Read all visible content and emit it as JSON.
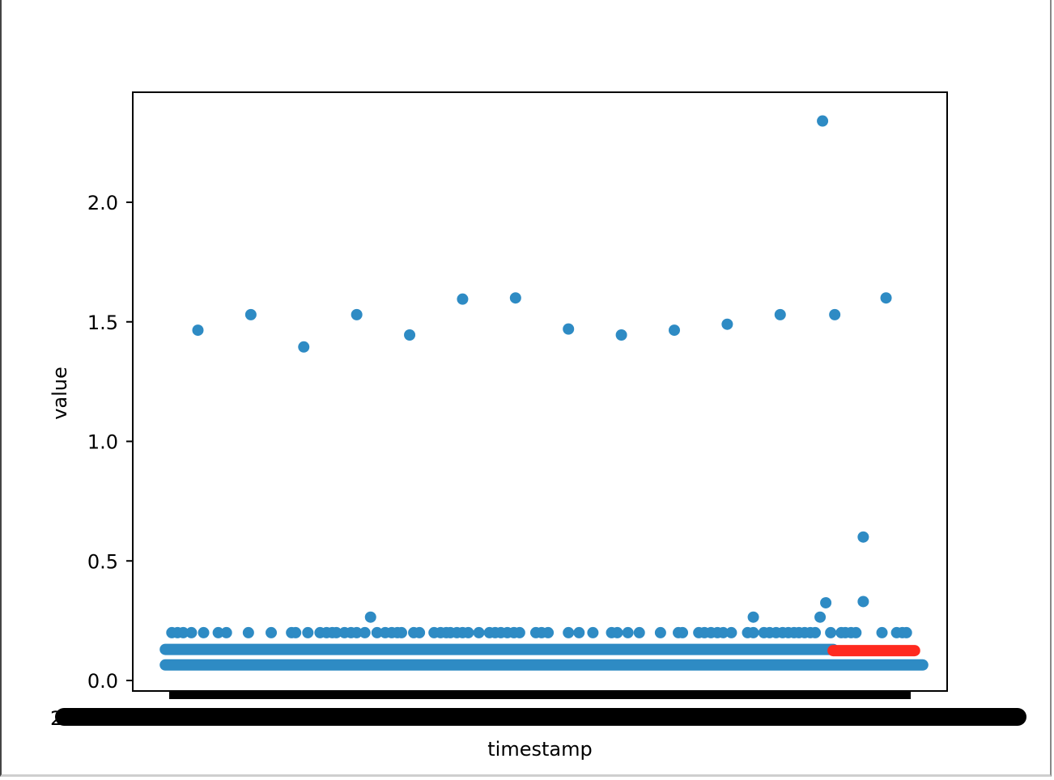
{
  "chart_data": {
    "type": "scatter",
    "title": "",
    "xlabel": "timestamp",
    "ylabel": "value",
    "ylim": [
      -0.04,
      2.45
    ],
    "xlim": [
      0,
      1
    ],
    "yticks": [
      0.0,
      0.5,
      1.0,
      1.5,
      2.0
    ],
    "ytick_labels": [
      "0.0",
      "0.5",
      "1.0",
      "1.5",
      "2.0"
    ],
    "x_tick_labels_note": "x tick labels overlap into an unreadable black band",
    "colors": {
      "normal": "#2e8bc4",
      "anomaly": "#ff2a1f",
      "axes": "#000000"
    },
    "bands": [
      {
        "name": "normal",
        "y": 0.065,
        "x_range": [
          0.04,
          0.97
        ],
        "color": "#2e8bc4"
      },
      {
        "name": "normal",
        "y": 0.13,
        "x_range": [
          0.04,
          0.86
        ],
        "color": "#2e8bc4"
      },
      {
        "name": "anomaly",
        "y": 0.125,
        "x_range": [
          0.86,
          0.96
        ],
        "color": "#ff2a1f"
      }
    ],
    "series": [
      {
        "color": "#2e8bc4",
        "points": [
          [
            0.08,
            1.465
          ],
          [
            0.145,
            1.53
          ],
          [
            0.21,
            1.395
          ],
          [
            0.275,
            1.53
          ],
          [
            0.34,
            1.445
          ],
          [
            0.405,
            1.595
          ],
          [
            0.47,
            1.6
          ],
          [
            0.535,
            1.47
          ],
          [
            0.6,
            1.445
          ],
          [
            0.665,
            1.465
          ],
          [
            0.73,
            1.49
          ],
          [
            0.795,
            1.53
          ],
          [
            0.862,
            1.53
          ],
          [
            0.925,
            1.6
          ],
          [
            0.847,
            2.34
          ],
          [
            0.897,
            0.6
          ],
          [
            0.897,
            0.33
          ],
          [
            0.851,
            0.325
          ],
          [
            0.844,
            0.265
          ],
          [
            0.762,
            0.265
          ],
          [
            0.292,
            0.265
          ]
        ],
        "row_y": 0.2,
        "row_x": [
          0.048,
          0.055,
          0.062,
          0.072,
          0.087,
          0.105,
          0.115,
          0.142,
          0.17,
          0.195,
          0.2,
          0.215,
          0.23,
          0.238,
          0.245,
          0.25,
          0.26,
          0.268,
          0.275,
          0.285,
          0.3,
          0.31,
          0.318,
          0.325,
          0.33,
          0.345,
          0.352,
          0.37,
          0.378,
          0.385,
          0.39,
          0.398,
          0.405,
          0.412,
          0.425,
          0.438,
          0.445,
          0.452,
          0.46,
          0.468,
          0.475,
          0.495,
          0.502,
          0.51,
          0.535,
          0.548,
          0.565,
          0.588,
          0.595,
          0.608,
          0.622,
          0.648,
          0.67,
          0.675,
          0.695,
          0.702,
          0.71,
          0.718,
          0.725,
          0.735,
          0.755,
          0.762,
          0.775,
          0.782,
          0.79,
          0.798,
          0.805,
          0.812,
          0.818,
          0.825,
          0.832,
          0.838,
          0.857,
          0.87,
          0.875,
          0.882,
          0.888,
          0.92,
          0.938,
          0.945,
          0.95
        ]
      }
    ]
  }
}
